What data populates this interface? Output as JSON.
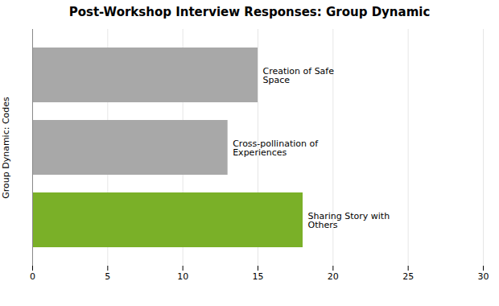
{
  "chart_data": {
    "type": "bar",
    "orientation": "horizontal",
    "title": "Post-Workshop Interview Responses: Group Dynamic",
    "ylabel": "Group Dynamic: Codes",
    "categories": [
      "Creation of Safe\nSpace",
      "Cross-pollination of\nExperiences",
      "Sharing Story with\nOthers"
    ],
    "values": [
      15,
      13,
      18
    ],
    "colors": [
      "#a8a8a8",
      "#a8a8a8",
      "#7ab028"
    ],
    "xlim": [
      0,
      30
    ],
    "xticks": [
      0,
      5,
      10,
      15,
      20,
      25,
      30
    ],
    "grid": true,
    "tick_labels": "x"
  }
}
